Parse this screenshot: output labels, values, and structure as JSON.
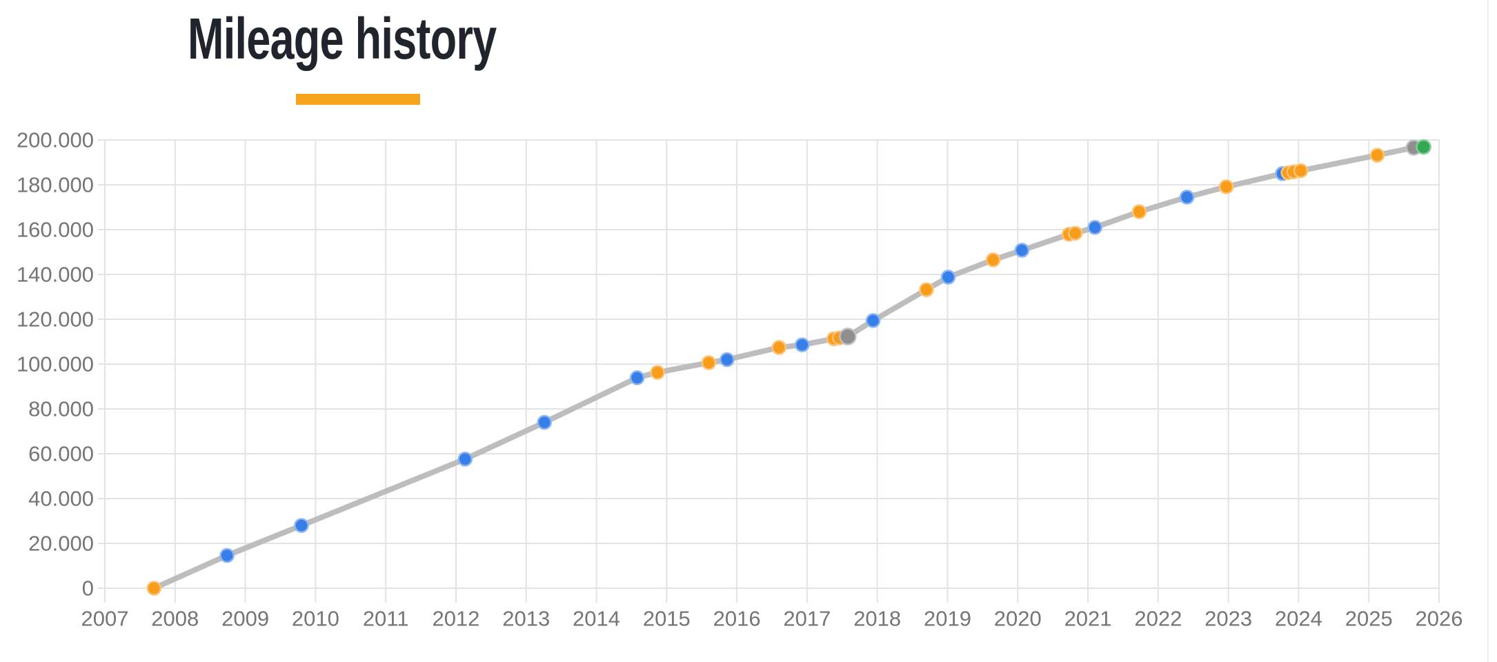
{
  "header": {
    "title": "Mileage history"
  },
  "colors": {
    "accent_bar": "#F6A41C",
    "title_text": "#20242C",
    "axis_text": "#757575",
    "grid": "#E3E3E3",
    "line": "#BDBDBD",
    "panel_border": "#EDEDED",
    "point_fills": {
      "blue": "#377EE8",
      "orange": "#F89C1B",
      "gray": "#8F8F8F",
      "green": "#33A852"
    },
    "point_rings": {
      "blue": "#8AB5F2",
      "orange": "#FBC478",
      "gray": "#C0C0C0",
      "green": "#85CC9C"
    }
  },
  "chart_data": {
    "type": "line",
    "title": "Mileage history",
    "xlabel": "",
    "ylabel": "",
    "legend": "none",
    "grid": "on",
    "unit": "km",
    "xlim": [
      2007,
      2026
    ],
    "ylim": [
      0,
      200000
    ],
    "x_ticks": [
      2007,
      2008,
      2009,
      2010,
      2011,
      2012,
      2013,
      2014,
      2015,
      2016,
      2017,
      2018,
      2019,
      2020,
      2021,
      2022,
      2023,
      2024,
      2025,
      2026
    ],
    "y_ticks": [
      {
        "v": 0,
        "label": "0"
      },
      {
        "v": 20000,
        "label": "20.000"
      },
      {
        "v": 40000,
        "label": "40.000"
      },
      {
        "v": 60000,
        "label": "60.000"
      },
      {
        "v": 80000,
        "label": "80.000"
      },
      {
        "v": 100000,
        "label": "100.000"
      },
      {
        "v": 120000,
        "label": "120.000"
      },
      {
        "v": 140000,
        "label": "140.000"
      },
      {
        "v": 160000,
        "label": "160.000"
      },
      {
        "v": 180000,
        "label": "180.000"
      },
      {
        "v": 200000,
        "label": "200.000"
      }
    ],
    "points": [
      {
        "year": 2007.7,
        "km": 0,
        "color": "orange"
      },
      {
        "year": 2008.74,
        "km": 14600,
        "color": "blue"
      },
      {
        "year": 2009.8,
        "km": 28000,
        "color": "blue"
      },
      {
        "year": 2012.13,
        "km": 57600,
        "color": "blue"
      },
      {
        "year": 2013.26,
        "km": 74000,
        "color": "blue"
      },
      {
        "year": 2014.58,
        "km": 93900,
        "color": "blue"
      },
      {
        "year": 2014.87,
        "km": 96300,
        "color": "orange"
      },
      {
        "year": 2015.6,
        "km": 100600,
        "color": "orange"
      },
      {
        "year": 2015.86,
        "km": 102000,
        "color": "blue"
      },
      {
        "year": 2016.6,
        "km": 107400,
        "color": "orange"
      },
      {
        "year": 2016.93,
        "km": 108600,
        "color": "blue"
      },
      {
        "year": 2017.38,
        "km": 111300,
        "color": "orange"
      },
      {
        "year": 2017.46,
        "km": 111700,
        "color": "orange"
      },
      {
        "year": 2017.58,
        "km": 112300,
        "color": "gray",
        "r": 11.5
      },
      {
        "year": 2017.94,
        "km": 119400,
        "color": "blue"
      },
      {
        "year": 2018.7,
        "km": 133200,
        "color": "orange"
      },
      {
        "year": 2019.01,
        "km": 138800,
        "color": "blue"
      },
      {
        "year": 2019.65,
        "km": 146500,
        "color": "orange"
      },
      {
        "year": 2020.06,
        "km": 150800,
        "color": "blue"
      },
      {
        "year": 2020.73,
        "km": 157900,
        "color": "orange"
      },
      {
        "year": 2020.82,
        "km": 158400,
        "color": "orange"
      },
      {
        "year": 2021.1,
        "km": 161000,
        "color": "blue"
      },
      {
        "year": 2021.73,
        "km": 168000,
        "color": "orange"
      },
      {
        "year": 2022.41,
        "km": 174500,
        "color": "blue"
      },
      {
        "year": 2022.97,
        "km": 179100,
        "color": "orange"
      },
      {
        "year": 2023.77,
        "km": 185000,
        "color": "blue"
      },
      {
        "year": 2023.85,
        "km": 185400,
        "color": "orange"
      },
      {
        "year": 2023.93,
        "km": 185800,
        "color": "orange"
      },
      {
        "year": 2024.03,
        "km": 186300,
        "color": "orange"
      },
      {
        "year": 2025.12,
        "km": 193200,
        "color": "orange"
      },
      {
        "year": 2025.64,
        "km": 196600,
        "color": "gray",
        "r": 10.5
      },
      {
        "year": 2025.78,
        "km": 196900,
        "color": "green",
        "r": 10
      }
    ]
  }
}
